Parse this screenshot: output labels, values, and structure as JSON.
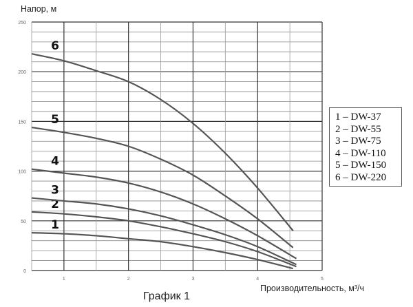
{
  "chart_data": {
    "type": "line",
    "title": "График 1",
    "xlabel": "Производительность, м³/ч",
    "ylabel": "Напор, м",
    "xlim": [
      0.5,
      5
    ],
    "ylim": [
      0,
      250
    ],
    "x_ticks": [
      "1",
      "2",
      "3",
      "4",
      "5"
    ],
    "y_ticks": [
      "0",
      "50",
      "100",
      "150",
      "200",
      "250"
    ],
    "grid": true,
    "legend_position": "right",
    "line_color": "#555555",
    "series": [
      {
        "name": "1 – DW-37",
        "label": "1",
        "x": [
          0.5,
          1,
          1.5,
          2,
          2.5,
          3,
          3.5,
          4,
          4.55
        ],
        "y": [
          38,
          37,
          35,
          32,
          29,
          24,
          18,
          11,
          2
        ]
      },
      {
        "name": "2 – DW-55",
        "label": "2",
        "x": [
          0.5,
          1,
          1.5,
          2,
          2.5,
          3,
          3.5,
          4,
          4.6
        ],
        "y": [
          59,
          57,
          54,
          50,
          44,
          37,
          29,
          19,
          4
        ]
      },
      {
        "name": "3 – DW-75",
        "label": "3",
        "x": [
          0.5,
          1,
          1.5,
          2,
          2.5,
          3,
          3.5,
          4,
          4.6
        ],
        "y": [
          73,
          70,
          67,
          62,
          55,
          46,
          36,
          24,
          6
        ]
      },
      {
        "name": "4 – DW-110",
        "label": "4",
        "x": [
          0.5,
          1,
          1.5,
          2,
          2.5,
          3,
          3.5,
          4,
          4.6
        ],
        "y": [
          102,
          98,
          94,
          88,
          79,
          67,
          52,
          35,
          12
        ]
      },
      {
        "name": "5 – DW-150",
        "label": "5",
        "x": [
          0.5,
          1,
          1.5,
          2,
          2.5,
          3,
          3.5,
          4,
          4.55
        ],
        "y": [
          144,
          139,
          133,
          125,
          112,
          96,
          75,
          52,
          23
        ]
      },
      {
        "name": "6 – DW-220",
        "label": "6",
        "x": [
          0.5,
          1,
          1.5,
          2,
          2.5,
          3,
          3.5,
          4,
          4.55
        ],
        "y": [
          218,
          211,
          201,
          190,
          172,
          148,
          118,
          83,
          40
        ]
      }
    ]
  }
}
